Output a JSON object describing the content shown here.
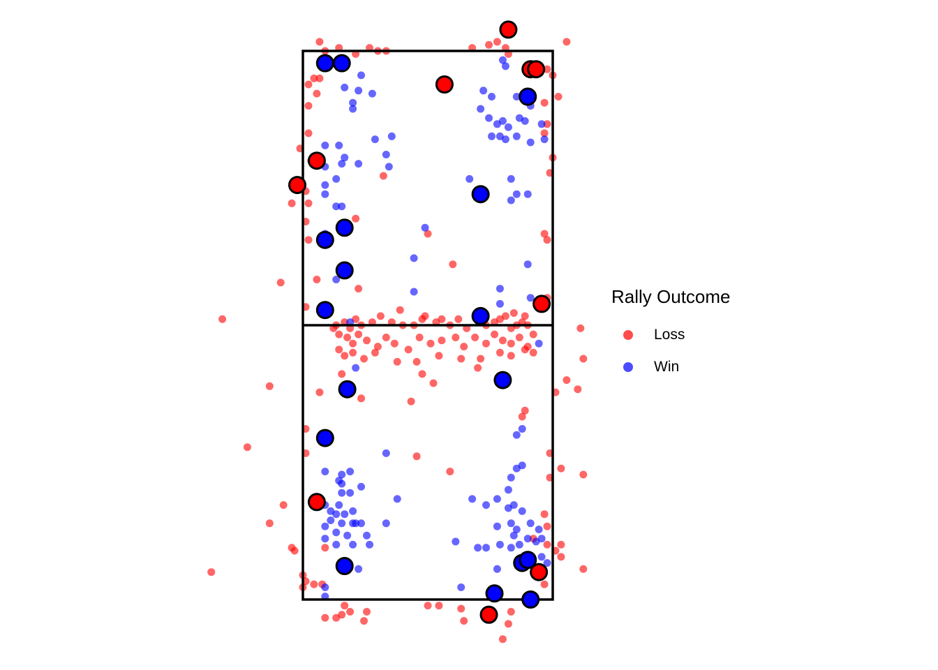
{
  "chart_data": {
    "type": "scatter",
    "title": "",
    "xlabel": "",
    "ylabel": "",
    "court": {
      "x_range": [
        0,
        9
      ],
      "y_range": [
        0,
        18
      ],
      "net_y": 9
    },
    "xlim": [
      -3.5,
      10.5
    ],
    "ylim": [
      -1.5,
      19.5
    ],
    "legend": {
      "title": "Rally Outcome",
      "placement": "right"
    },
    "colors": {
      "Loss": "#ff0000",
      "Win": "#0000ff"
    },
    "series": [
      {
        "name": "Loss",
        "points": [
          [
            0.6,
            18.3
          ],
          [
            0.8,
            18.0
          ],
          [
            1.3,
            18.1
          ],
          [
            1.9,
            17.9
          ],
          [
            2.4,
            18.1
          ],
          [
            2.7,
            18.0
          ],
          [
            3.0,
            18.0
          ],
          [
            6.1,
            18.1
          ],
          [
            6.7,
            18.2
          ],
          [
            7.0,
            18.3
          ],
          [
            7.4,
            17.9
          ],
          [
            7.3,
            18.1
          ],
          [
            9.5,
            18.3
          ],
          [
            0.2,
            16.9
          ],
          [
            0.4,
            17.1
          ],
          [
            0.6,
            17.1
          ],
          [
            0.5,
            16.6
          ],
          [
            0.2,
            16.2
          ],
          [
            8.8,
            17.4
          ],
          [
            9.0,
            17.2
          ],
          [
            8.7,
            16.3
          ],
          [
            9.2,
            16.5
          ],
          [
            8.8,
            15.6
          ],
          [
            8.7,
            15.3
          ],
          [
            0.2,
            15.3
          ],
          [
            -0.1,
            14.8
          ],
          [
            0.3,
            14.4
          ],
          [
            2.9,
            13.9
          ],
          [
            9.0,
            14.5
          ],
          [
            8.9,
            14.0
          ],
          [
            -0.4,
            13.0
          ],
          [
            0.2,
            13.0
          ],
          [
            0.1,
            13.4
          ],
          [
            1.9,
            12.5
          ],
          [
            0.1,
            12.4
          ],
          [
            4.5,
            12.0
          ],
          [
            8.7,
            12.0
          ],
          [
            0.2,
            11.8
          ],
          [
            8.8,
            11.8
          ],
          [
            5.4,
            11.0
          ],
          [
            0.5,
            10.5
          ],
          [
            -0.8,
            10.4
          ],
          [
            2.0,
            10.2
          ],
          [
            8.8,
            9.9
          ],
          [
            0.1,
            9.6
          ],
          [
            3.5,
            9.5
          ],
          [
            7.6,
            9.4
          ],
          [
            -2.9,
            9.2
          ],
          [
            4.3,
            9.2
          ],
          [
            8.0,
            9.3
          ],
          [
            1.2,
            9.0
          ],
          [
            1.5,
            9.1
          ],
          [
            1.7,
            8.9
          ],
          [
            1.9,
            9.2
          ],
          [
            2.1,
            9.0
          ],
          [
            2.5,
            9.1
          ],
          [
            2.8,
            9.3
          ],
          [
            3.2,
            9.1
          ],
          [
            3.6,
            9.0
          ],
          [
            4.0,
            9.0
          ],
          [
            4.4,
            9.3
          ],
          [
            4.8,
            9.1
          ],
          [
            5.0,
            9.2
          ],
          [
            5.3,
            9.0
          ],
          [
            5.6,
            9.2
          ],
          [
            5.9,
            8.9
          ],
          [
            6.3,
            9.2
          ],
          [
            6.6,
            9.0
          ],
          [
            6.9,
            9.1
          ],
          [
            7.1,
            9.2
          ],
          [
            7.3,
            9.3
          ],
          [
            7.5,
            8.9
          ],
          [
            7.7,
            9.0
          ],
          [
            7.9,
            9.1
          ],
          [
            8.1,
            9.0
          ],
          [
            1.1,
            8.9
          ],
          [
            1.3,
            8.7
          ],
          [
            1.6,
            8.6
          ],
          [
            1.8,
            8.4
          ],
          [
            2.0,
            8.7
          ],
          [
            2.3,
            8.5
          ],
          [
            2.7,
            8.3
          ],
          [
            3.0,
            8.6
          ],
          [
            3.3,
            8.4
          ],
          [
            3.8,
            8.2
          ],
          [
            4.2,
            8.6
          ],
          [
            4.6,
            8.4
          ],
          [
            5.0,
            8.5
          ],
          [
            5.5,
            8.6
          ],
          [
            5.8,
            8.3
          ],
          [
            6.2,
            8.6
          ],
          [
            6.6,
            8.4
          ],
          [
            6.9,
            8.7
          ],
          [
            7.2,
            8.5
          ],
          [
            7.5,
            8.4
          ],
          [
            7.8,
            8.6
          ],
          [
            8.1,
            8.3
          ],
          [
            8.3,
            8.7
          ],
          [
            1.3,
            8.2
          ],
          [
            1.5,
            8.0
          ],
          [
            1.8,
            8.1
          ],
          [
            2.2,
            7.9
          ],
          [
            2.6,
            8.1
          ],
          [
            3.4,
            7.8
          ],
          [
            4.1,
            7.8
          ],
          [
            4.9,
            8.0
          ],
          [
            5.7,
            7.9
          ],
          [
            6.4,
            7.9
          ],
          [
            7.1,
            8.1
          ],
          [
            7.5,
            8.0
          ],
          [
            8.0,
            8.2
          ],
          [
            8.3,
            8.1
          ],
          [
            1.4,
            7.4
          ],
          [
            4.3,
            7.4
          ],
          [
            6.3,
            7.6
          ],
          [
            4.7,
            7.1
          ],
          [
            3.9,
            6.5
          ],
          [
            10.0,
            8.9
          ],
          [
            10.1,
            7.9
          ],
          [
            9.5,
            7.2
          ],
          [
            9.9,
            6.9
          ],
          [
            9.1,
            6.8
          ],
          [
            8.0,
            6.2
          ],
          [
            7.9,
            6.0
          ],
          [
            -1.2,
            7.0
          ],
          [
            0.6,
            6.8
          ],
          [
            2.1,
            6.6
          ],
          [
            8.9,
            4.8
          ],
          [
            9.3,
            4.3
          ],
          [
            8.9,
            4.0
          ],
          [
            10.1,
            4.1
          ],
          [
            4.1,
            4.7
          ],
          [
            5.3,
            4.2
          ],
          [
            -2.0,
            5.0
          ],
          [
            0.1,
            5.6
          ],
          [
            0.1,
            4.8
          ],
          [
            -0.7,
            3.1
          ],
          [
            -1.2,
            2.5
          ],
          [
            8.7,
            2.8
          ],
          [
            8.8,
            2.4
          ],
          [
            8.3,
            2.0
          ],
          [
            8.8,
            1.8
          ],
          [
            -0.4,
            1.7
          ],
          [
            0.8,
            1.7
          ],
          [
            9.1,
            1.6
          ],
          [
            9.3,
            1.4
          ],
          [
            9.3,
            1.8
          ],
          [
            10.1,
            1.0
          ],
          [
            -0.3,
            1.6
          ],
          [
            -3.3,
            0.9
          ],
          [
            0.0,
            0.8
          ],
          [
            0.1,
            0.6
          ],
          [
            0.4,
            0.5
          ],
          [
            0.7,
            0.5
          ],
          [
            0.0,
            0.4
          ],
          [
            8.7,
            0.5
          ],
          [
            1.5,
            -0.2
          ],
          [
            1.7,
            -0.4
          ],
          [
            1.4,
            -0.5
          ],
          [
            2.3,
            -0.4
          ],
          [
            0.8,
            -0.6
          ],
          [
            1.2,
            -0.6
          ],
          [
            4.5,
            -0.2
          ],
          [
            4.9,
            -0.2
          ],
          [
            5.7,
            -0.3
          ],
          [
            5.8,
            -0.7
          ],
          [
            2.2,
            -0.7
          ],
          [
            7.5,
            -0.4
          ],
          [
            7.4,
            -0.8
          ],
          [
            7.2,
            -1.3
          ]
        ],
        "highlighted": [
          [
            7.4,
            18.7
          ],
          [
            8.2,
            17.4
          ],
          [
            8.4,
            17.4
          ],
          [
            5.1,
            16.9
          ],
          [
            0.5,
            14.4
          ],
          [
            -0.2,
            13.6
          ],
          [
            8.6,
            9.7
          ],
          [
            0.5,
            3.2
          ],
          [
            8.5,
            0.9
          ],
          [
            6.7,
            -0.5
          ]
        ]
      },
      {
        "name": "Win",
        "points": [
          [
            7.2,
            17.7
          ],
          [
            7.3,
            17.5
          ],
          [
            2.1,
            17.2
          ],
          [
            1.5,
            16.8
          ],
          [
            2.0,
            16.7
          ],
          [
            2.5,
            16.6
          ],
          [
            1.8,
            16.3
          ],
          [
            1.8,
            16.1
          ],
          [
            6.5,
            16.7
          ],
          [
            6.8,
            16.5
          ],
          [
            7.7,
            16.5
          ],
          [
            8.2,
            16.2
          ],
          [
            6.4,
            16.1
          ],
          [
            6.7,
            15.8
          ],
          [
            7.2,
            15.7
          ],
          [
            7.8,
            15.8
          ],
          [
            8.0,
            15.7
          ],
          [
            7.0,
            15.6
          ],
          [
            7.4,
            15.5
          ],
          [
            8.6,
            15.6
          ],
          [
            6.8,
            15.2
          ],
          [
            7.3,
            15.1
          ],
          [
            7.7,
            15.2
          ],
          [
            8.2,
            15.0
          ],
          [
            8.7,
            15.1
          ],
          [
            7.1,
            15.2
          ],
          [
            0.8,
            14.9
          ],
          [
            1.3,
            14.9
          ],
          [
            2.6,
            15.1
          ],
          [
            3.2,
            15.2
          ],
          [
            3.0,
            14.6
          ],
          [
            3.1,
            14.2
          ],
          [
            1.5,
            14.5
          ],
          [
            2.0,
            14.3
          ],
          [
            0.8,
            14.2
          ],
          [
            1.4,
            14.3
          ],
          [
            1.2,
            13.8
          ],
          [
            0.8,
            13.6
          ],
          [
            0.8,
            13.3
          ],
          [
            1.2,
            12.9
          ],
          [
            1.4,
            12.9
          ],
          [
            0.8,
            12.0
          ],
          [
            6.0,
            13.8
          ],
          [
            6.3,
            13.4
          ],
          [
            7.5,
            13.8
          ],
          [
            7.5,
            13.1
          ],
          [
            7.7,
            13.3
          ],
          [
            8.1,
            13.3
          ],
          [
            4.4,
            12.2
          ],
          [
            4.0,
            11.2
          ],
          [
            8.1,
            11.0
          ],
          [
            1.2,
            10.5
          ],
          [
            7.1,
            10.2
          ],
          [
            4.0,
            10.1
          ],
          [
            8.2,
            9.9
          ],
          [
            7.1,
            9.7
          ],
          [
            1.7,
            9.1
          ],
          [
            8.5,
            8.4
          ],
          [
            1.9,
            7.6
          ],
          [
            7.7,
            5.4
          ],
          [
            7.9,
            5.6
          ],
          [
            3.0,
            4.8
          ],
          [
            7.9,
            4.4
          ],
          [
            0.8,
            4.2
          ],
          [
            1.4,
            4.1
          ],
          [
            1.7,
            4.2
          ],
          [
            1.3,
            3.9
          ],
          [
            1.4,
            3.8
          ],
          [
            2.1,
            3.7
          ],
          [
            1.4,
            3.5
          ],
          [
            1.7,
            3.5
          ],
          [
            3.4,
            3.3
          ],
          [
            6.1,
            3.3
          ],
          [
            6.6,
            3.1
          ],
          [
            7.0,
            3.3
          ],
          [
            7.4,
            3.6
          ],
          [
            7.5,
            4.0
          ],
          [
            7.7,
            4.3
          ],
          [
            7.4,
            3.0
          ],
          [
            7.6,
            3.1
          ],
          [
            7.9,
            2.9
          ],
          [
            0.8,
            3.1
          ],
          [
            1.0,
            2.9
          ],
          [
            1.3,
            3.1
          ],
          [
            1.2,
            2.8
          ],
          [
            1.5,
            2.8
          ],
          [
            1.8,
            2.9
          ],
          [
            1.0,
            2.6
          ],
          [
            1.4,
            2.5
          ],
          [
            1.8,
            2.5
          ],
          [
            1.9,
            2.5
          ],
          [
            2.1,
            2.5
          ],
          [
            0.8,
            2.4
          ],
          [
            1.2,
            2.2
          ],
          [
            1.6,
            2.1
          ],
          [
            2.3,
            2.1
          ],
          [
            3.0,
            2.5
          ],
          [
            7.0,
            2.4
          ],
          [
            7.5,
            2.5
          ],
          [
            7.7,
            2.3
          ],
          [
            7.6,
            2.1
          ],
          [
            8.2,
            2.5
          ],
          [
            8.5,
            2.3
          ],
          [
            8.6,
            2.0
          ],
          [
            8.1,
            2.0
          ],
          [
            7.8,
            1.8
          ],
          [
            7.5,
            1.7
          ],
          [
            0.8,
            2.0
          ],
          [
            1.2,
            1.8
          ],
          [
            1.8,
            1.8
          ],
          [
            2.4,
            1.8
          ],
          [
            5.5,
            1.9
          ],
          [
            6.3,
            1.7
          ],
          [
            6.6,
            1.7
          ],
          [
            7.1,
            1.8
          ],
          [
            8.4,
            1.9
          ],
          [
            8.8,
            1.2
          ],
          [
            8.6,
            1.4
          ],
          [
            7.0,
            1.0
          ],
          [
            8.4,
            0.9
          ],
          [
            2.0,
            1.0
          ],
          [
            5.7,
            0.4
          ],
          [
            0.8,
            0.4
          ],
          [
            0.8,
            0.1
          ]
        ],
        "highlighted": [
          [
            0.8,
            17.6
          ],
          [
            1.4,
            17.6
          ],
          [
            8.1,
            16.5
          ],
          [
            6.4,
            13.3
          ],
          [
            0.8,
            11.8
          ],
          [
            1.5,
            12.2
          ],
          [
            1.5,
            10.8
          ],
          [
            0.8,
            9.5
          ],
          [
            6.4,
            9.3
          ],
          [
            1.6,
            6.9
          ],
          [
            7.2,
            7.2
          ],
          [
            0.8,
            5.3
          ],
          [
            1.5,
            1.1
          ],
          [
            7.9,
            1.2
          ],
          [
            8.1,
            1.3
          ],
          [
            6.9,
            0.2
          ],
          [
            8.2,
            0.0
          ]
        ]
      }
    ],
    "grid": false,
    "axes_visible": false
  }
}
